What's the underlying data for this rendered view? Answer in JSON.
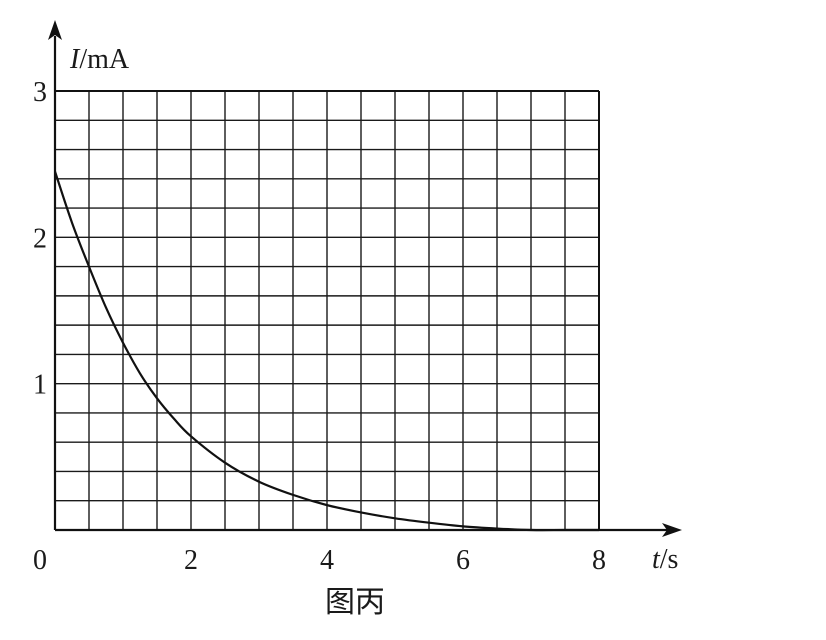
{
  "chart_data": {
    "type": "line",
    "y_axis_label": {
      "var": "I",
      "unit": "/mA"
    },
    "x_axis_label": {
      "var": "t",
      "unit": "/s"
    },
    "caption": "图丙",
    "xlim": [
      0,
      8
    ],
    "ylim": [
      0,
      3
    ],
    "x_ticks": [
      "0",
      "2",
      "4",
      "6",
      "8"
    ],
    "y_ticks": [
      "1",
      "2",
      "3"
    ],
    "grid": {
      "x_minor_step": 0.5,
      "y_minor_step": 0.2
    },
    "series": [
      {
        "x": [
          0,
          0.25,
          0.5,
          0.75,
          1.0,
          1.25,
          1.5,
          1.75,
          2.0,
          2.5,
          3.0,
          3.5,
          4.0,
          4.5,
          5.0,
          5.5,
          6.0,
          6.5,
          7.0,
          7.5,
          8.0
        ],
        "y": [
          2.45,
          2.1,
          1.8,
          1.52,
          1.28,
          1.07,
          0.9,
          0.76,
          0.64,
          0.46,
          0.33,
          0.24,
          0.17,
          0.12,
          0.08,
          0.05,
          0.025,
          0.01,
          0.0,
          0.0,
          0.0
        ]
      }
    ]
  }
}
